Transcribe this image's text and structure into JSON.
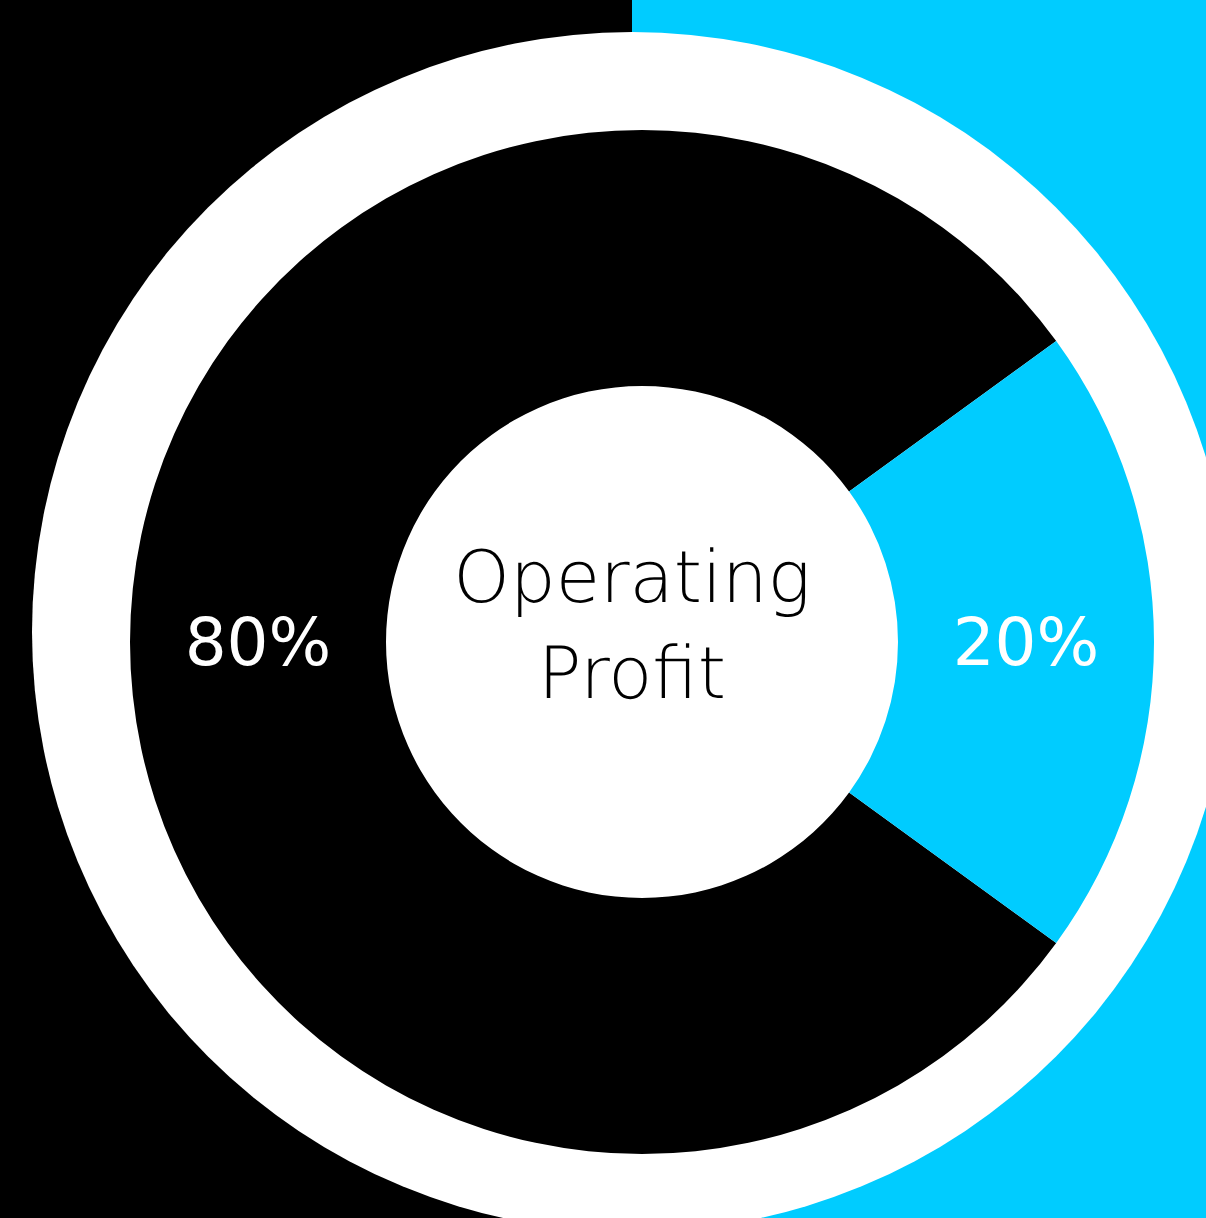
{
  "chart_data": {
    "type": "donut",
    "title": "Operating Profit",
    "categories": [
      null,
      null
    ],
    "values": [
      80,
      20
    ],
    "colors": [
      "#000000",
      "#00ccff"
    ],
    "value_labels": [
      "80%",
      "20%"
    ]
  }
}
